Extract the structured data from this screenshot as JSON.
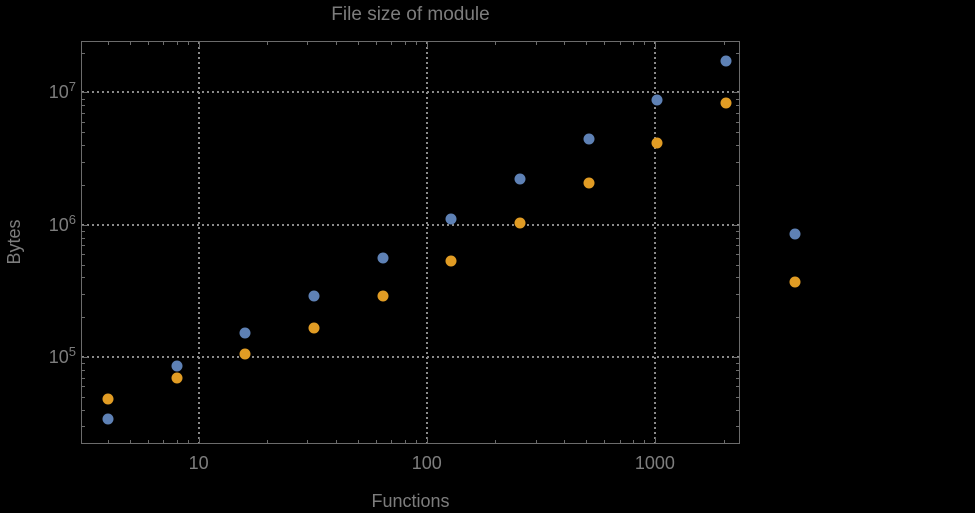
{
  "chart_data": {
    "type": "scatter",
    "title": "File size of module",
    "xlabel": "Functions",
    "ylabel": "Bytes",
    "x_scale": "log",
    "y_scale": "log",
    "xlim": [
      3.05,
      2360
    ],
    "ylim": [
      22000,
      24500000
    ],
    "grid": "dotted gridlines at decade ticks, frame ticks on all four edges",
    "legend": "none",
    "x": [
      4,
      8,
      16,
      32,
      64,
      128,
      256,
      512,
      1024,
      2048,
      4096
    ],
    "series": [
      {
        "name": "series-blue",
        "color": "#5E81B5",
        "values": [
          34000,
          86000,
          152000,
          288000,
          558000,
          1100000,
          2210000,
          4420000,
          8710000,
          17200000,
          847000
        ]
      },
      {
        "name": "series-orange",
        "color": "#E19C24",
        "values": [
          48500,
          70000,
          106000,
          167000,
          288000,
          535000,
          1030000,
          2060000,
          4130000,
          8270000,
          368000
        ]
      }
    ],
    "x_major_ticks": [
      10,
      100,
      1000
    ],
    "x_minor_ticks": [
      4,
      5,
      6,
      7,
      8,
      9,
      20,
      30,
      40,
      50,
      60,
      70,
      80,
      90,
      200,
      300,
      400,
      500,
      600,
      700,
      800,
      900,
      2000
    ],
    "y_major_ticks": [
      100000,
      1000000,
      10000000
    ],
    "y_minor_ticks": [
      30000,
      40000,
      50000,
      60000,
      70000,
      80000,
      90000,
      200000,
      300000,
      400000,
      500000,
      600000,
      700000,
      800000,
      900000,
      2000000,
      3000000,
      4000000,
      5000000,
      6000000,
      7000000,
      8000000,
      9000000,
      20000000
    ],
    "x_tick_labels": [
      {
        "value": 10,
        "label": "10"
      },
      {
        "value": 100,
        "label": "100"
      },
      {
        "value": 1000,
        "label": "1000"
      }
    ],
    "y_tick_labels": [
      {
        "value": 100000,
        "mantissa": "10",
        "exponent": "5"
      },
      {
        "value": 1000000,
        "mantissa": "10",
        "exponent": "6"
      },
      {
        "value": 10000000,
        "mantissa": "10",
        "exponent": "7"
      }
    ],
    "colors": {
      "background": "#000000",
      "text": "#7d7d7d",
      "frame": "#6b6b6b",
      "grid": "#8a8a8a",
      "series_blue": "#5E81B5",
      "series_orange": "#E19C24"
    }
  }
}
